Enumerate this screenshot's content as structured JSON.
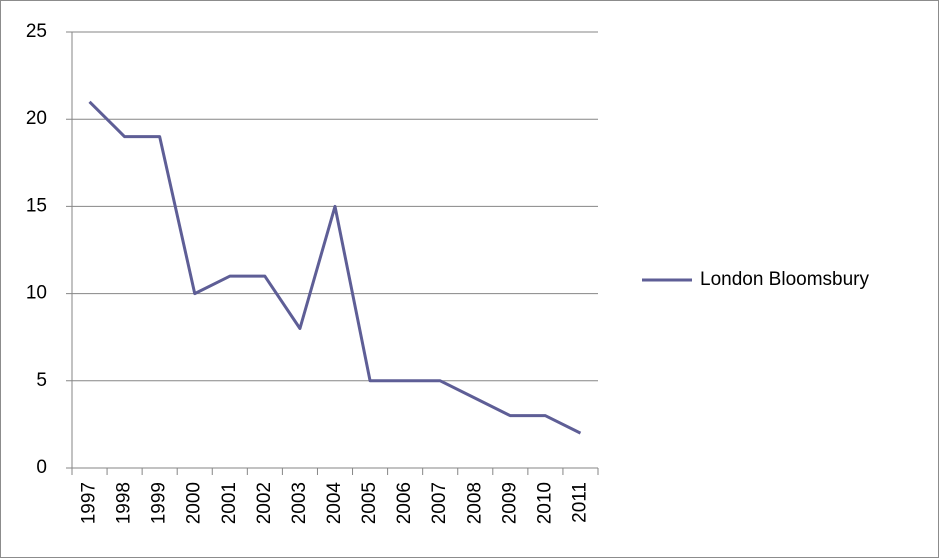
{
  "chart_data": {
    "type": "line",
    "categories": [
      "1997",
      "1998",
      "1999",
      "2000",
      "2001",
      "2002",
      "2003",
      "2004",
      "2005",
      "2006",
      "2007",
      "2008",
      "2009",
      "2010",
      "2011"
    ],
    "series": [
      {
        "name": "London Bloomsbury",
        "color": "#5e5e96",
        "values": [
          21,
          19,
          19,
          10,
          11,
          11,
          8,
          15,
          5,
          5,
          5,
          4,
          3,
          3,
          2
        ]
      }
    ],
    "ylim": [
      0,
      25
    ],
    "yticks": [
      0,
      5,
      10,
      15,
      20,
      25
    ],
    "grid": true,
    "legend": "right"
  }
}
